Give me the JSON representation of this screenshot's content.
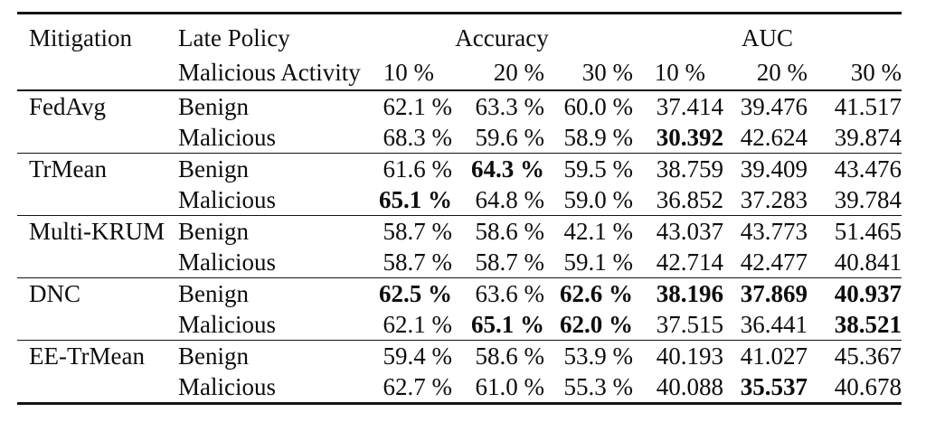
{
  "table": {
    "header": {
      "mitigation_label": "Mitigation",
      "policy_line1": "Late Policy",
      "policy_line2": "Malicious Activity",
      "accuracy_label": "Accuracy",
      "auc_label": "AUC",
      "subheaders": [
        "10 %",
        "20 %",
        "30 %",
        "10 %",
        "20 %",
        "30 %"
      ]
    },
    "groups": [
      {
        "mitigation": "FedAvg",
        "rows": [
          {
            "activity": "Benign",
            "values": [
              "62.1 %",
              "63.3 %",
              "60.0 %",
              "37.414",
              "39.476",
              "41.517"
            ],
            "bold": [
              false,
              false,
              false,
              false,
              false,
              false
            ]
          },
          {
            "activity": "Malicious",
            "values": [
              "68.3 %",
              "59.6 %",
              "58.9 %",
              "30.392",
              "42.624",
              "39.874"
            ],
            "bold": [
              false,
              false,
              false,
              true,
              false,
              false
            ]
          }
        ]
      },
      {
        "mitigation": "TrMean",
        "rows": [
          {
            "activity": "Benign",
            "values": [
              "61.6 %",
              "64.3 %",
              "59.5 %",
              "38.759",
              "39.409",
              "43.476"
            ],
            "bold": [
              false,
              true,
              false,
              false,
              false,
              false
            ]
          },
          {
            "activity": "Malicious",
            "values": [
              "65.1 %",
              "64.8 %",
              "59.0 %",
              "36.852",
              "37.283",
              "39.784"
            ],
            "bold": [
              true,
              false,
              false,
              false,
              false,
              false
            ]
          }
        ]
      },
      {
        "mitigation": "Multi-KRUM",
        "rows": [
          {
            "activity": "Benign",
            "values": [
              "58.7 %",
              "58.6 %",
              "42.1 %",
              "43.037",
              "43.773",
              "51.465"
            ],
            "bold": [
              false,
              false,
              false,
              false,
              false,
              false
            ]
          },
          {
            "activity": "Malicious",
            "values": [
              "58.7 %",
              "58.7 %",
              "59.1 %",
              "42.714",
              "42.477",
              "40.841"
            ],
            "bold": [
              false,
              false,
              false,
              false,
              false,
              false
            ]
          }
        ]
      },
      {
        "mitigation": "DNC",
        "rows": [
          {
            "activity": "Benign",
            "values": [
              "62.5 %",
              "63.6 %",
              "62.6 %",
              "38.196",
              "37.869",
              "40.937"
            ],
            "bold": [
              true,
              false,
              true,
              true,
              true,
              true
            ]
          },
          {
            "activity": "Malicious",
            "values": [
              "62.1 %",
              "65.1 %",
              "62.0 %",
              "37.515",
              "36.441",
              "38.521"
            ],
            "bold": [
              false,
              true,
              true,
              false,
              false,
              true
            ]
          }
        ]
      },
      {
        "mitigation": "EE-TrMean",
        "rows": [
          {
            "activity": "Benign",
            "values": [
              "59.4 %",
              "58.6 %",
              "53.9 %",
              "40.193",
              "41.027",
              "45.367"
            ],
            "bold": [
              false,
              false,
              false,
              false,
              false,
              false
            ]
          },
          {
            "activity": "Malicious",
            "values": [
              "62.7 %",
              "61.0 %",
              "55.3 %",
              "40.088",
              "35.537",
              "40.678"
            ],
            "bold": [
              false,
              false,
              false,
              false,
              true,
              false
            ]
          }
        ]
      }
    ]
  }
}
